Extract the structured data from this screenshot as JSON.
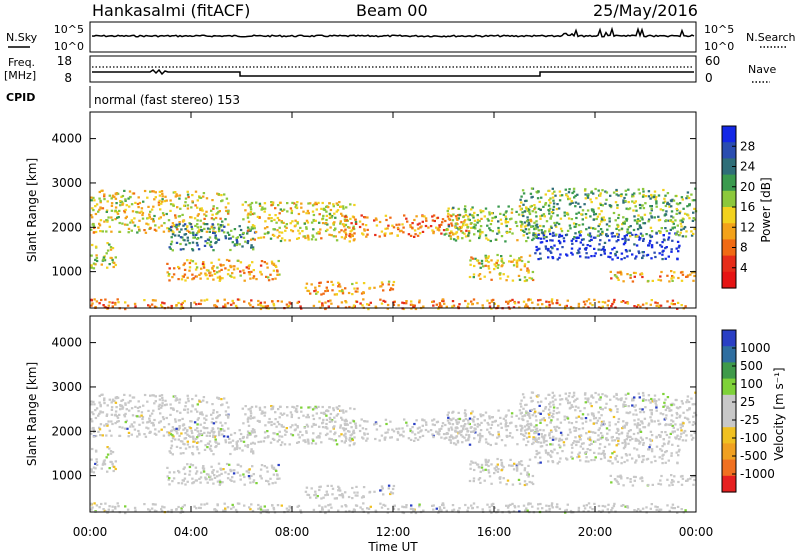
{
  "header": {
    "station": "Hankasalmi (fitACF)",
    "beam": "Beam 00",
    "date": "25/May/2016"
  },
  "panels": {
    "nsky_label": "N.Sky",
    "nsearch_label": "N.Search",
    "nsky_ticks": [
      "10^5",
      "10^0"
    ],
    "nsearch_ticks": [
      "10^5",
      "10^0"
    ],
    "freq_label": "Freq.",
    "freq_unit": "[MHz]",
    "freq_ticks": [
      "18",
      "8"
    ],
    "nave_label": "Nave",
    "nave_ticks": [
      "60",
      "0"
    ],
    "cpid_label": "CPID",
    "cpid_text": "normal (fast stereo) 153"
  },
  "colors": {
    "power": [
      "#1428e6",
      "#2a4db0",
      "#2f6e78",
      "#3a9a4e",
      "#8cc83c",
      "#f2d21e",
      "#f3a21a",
      "#f06a14",
      "#e62d1a",
      "#e61414"
    ],
    "velocity": [
      "#2a3fc4",
      "#2f6ea0",
      "#3f9a4a",
      "#7ed238",
      "#c8c8c8",
      "#c8c8c8",
      "#f0c020",
      "#f0a020",
      "#f07020",
      "#e62020"
    ],
    "velocity_gray": "#c8c8c8"
  },
  "chart_data": [
    {
      "type": "heatmap",
      "name": "power",
      "ylabel": "Slant Range [km]",
      "xlabel": "",
      "y_ticks": [
        "4000",
        "3000",
        "2000",
        "1000"
      ],
      "x_range_hours": [
        0,
        24
      ],
      "y_range_km": [
        180,
        4600
      ],
      "colorbar_label": "Power [dB]",
      "colorbar_ticks": [
        "28",
        "24",
        "20",
        "16",
        "12",
        "8",
        "4"
      ],
      "echo_regions": [
        {
          "x0": 0,
          "x1": 5.5,
          "y0": 1900,
          "y1": 2850,
          "level": 0.45
        },
        {
          "x0": 3,
          "x1": 6.5,
          "y0": 1500,
          "y1": 2100,
          "level": 0.7
        },
        {
          "x0": 6,
          "x1": 10.5,
          "y0": 1700,
          "y1": 2600,
          "level": 0.45
        },
        {
          "x0": 10,
          "x1": 15,
          "y0": 1800,
          "y1": 2300,
          "level": 0.3
        },
        {
          "x0": 14,
          "x1": 18,
          "y0": 1700,
          "y1": 2500,
          "level": 0.55
        },
        {
          "x0": 17.5,
          "x1": 23.3,
          "y0": 1300,
          "y1": 1900,
          "level": 0.95
        },
        {
          "x0": 17,
          "x1": 24,
          "y0": 1800,
          "y1": 2900,
          "level": 0.6
        },
        {
          "x0": 20.5,
          "x1": 24,
          "y0": 800,
          "y1": 1050,
          "level": 0.35
        },
        {
          "x0": 0,
          "x1": 1,
          "y0": 1100,
          "y1": 1700,
          "level": 0.5
        },
        {
          "x0": 3,
          "x1": 7.5,
          "y0": 800,
          "y1": 1300,
          "level": 0.35
        },
        {
          "x0": 8.5,
          "x1": 12,
          "y0": 500,
          "y1": 800,
          "level": 0.35
        },
        {
          "x0": 15,
          "x1": 17.5,
          "y0": 800,
          "y1": 1400,
          "level": 0.45
        },
        {
          "x0": 0,
          "x1": 24,
          "y0": 180,
          "y1": 400,
          "level": 0.3
        }
      ]
    },
    {
      "type": "heatmap",
      "name": "velocity",
      "ylabel": "Slant Range [km]",
      "xlabel": "Time UT",
      "y_ticks": [
        "4000",
        "3000",
        "2000",
        "1000"
      ],
      "x_ticks": [
        "00:00",
        "04:00",
        "08:00",
        "12:00",
        "16:00",
        "20:00",
        "00:00"
      ],
      "x_range_hours": [
        0,
        24
      ],
      "y_range_km": [
        180,
        4600
      ],
      "colorbar_label": "Velocity [m s⁻¹]",
      "colorbar_ticks": [
        "1000",
        "500",
        "100",
        "25",
        "-25",
        "-100",
        "-500",
        "-1000"
      ]
    }
  ]
}
